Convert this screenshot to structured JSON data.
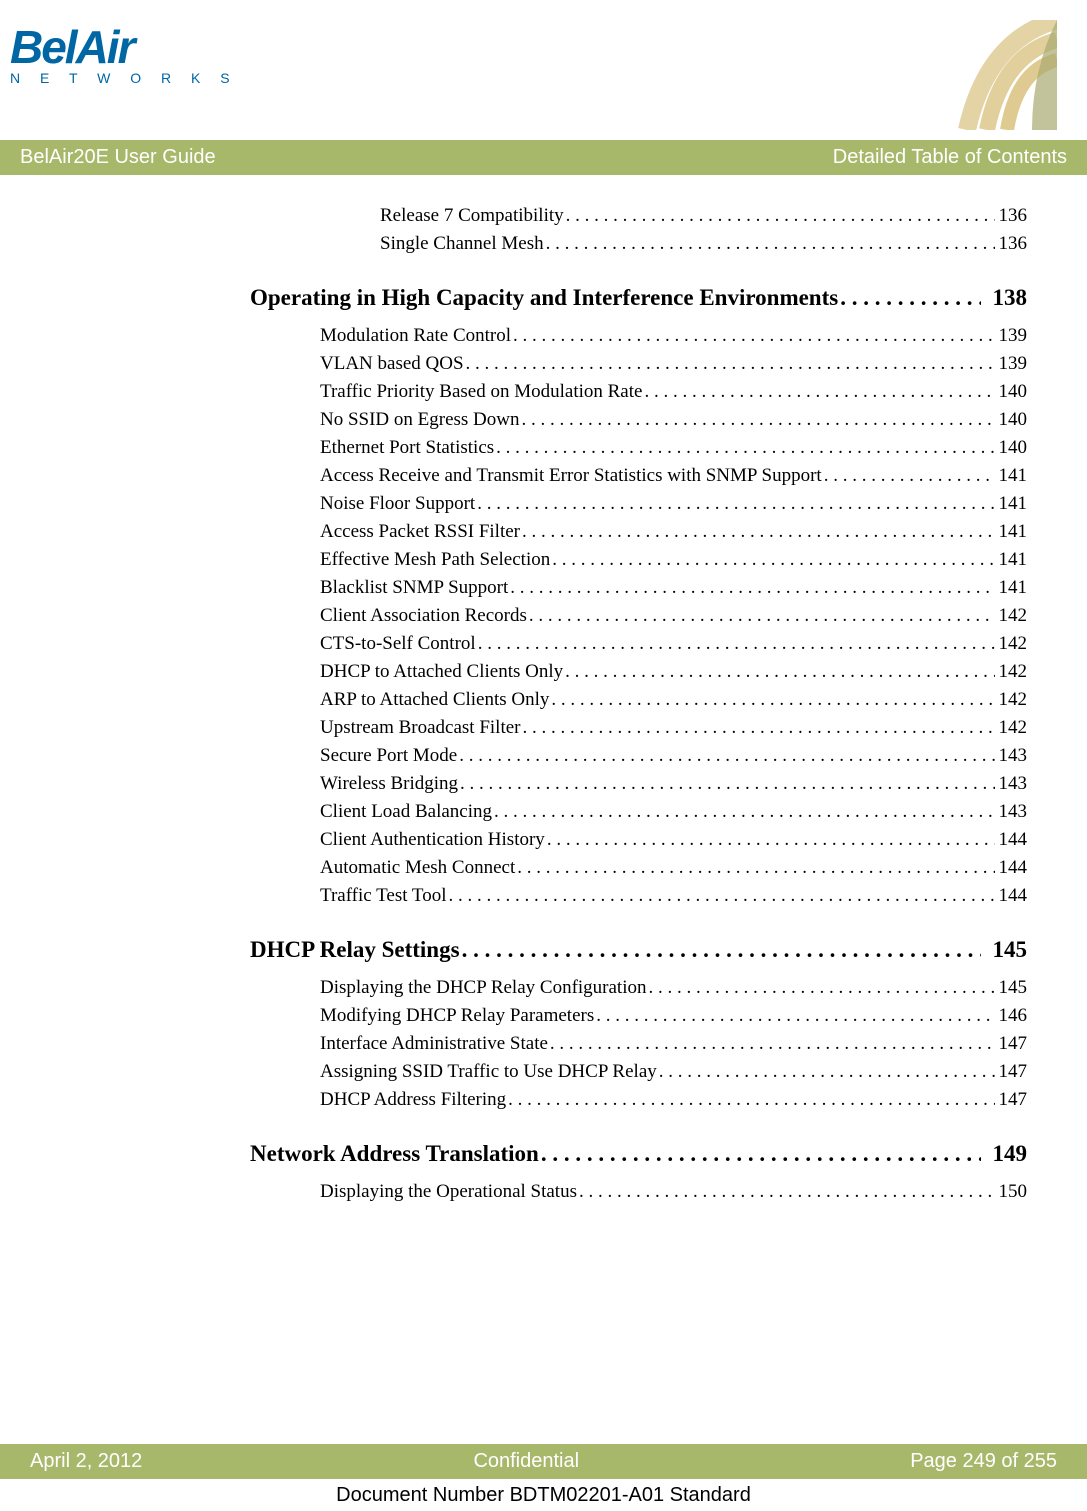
{
  "logo": {
    "main": "BelAir",
    "sub": "N E T W O R K S"
  },
  "titleBar": {
    "left": "BelAir20E User Guide",
    "right": "Detailed Table of Contents"
  },
  "colors": {
    "bar": "#a8b86a",
    "logo": "#0066a4",
    "corner": "#c9a84a"
  },
  "preItems": [
    {
      "label": "Release 7 Compatibility",
      "page": "136"
    },
    {
      "label": "Single Channel Mesh",
      "page": "136"
    }
  ],
  "sections": [
    {
      "title": "Operating in High Capacity and Interference Environments",
      "page": "138",
      "items": [
        {
          "label": "Modulation Rate Control",
          "page": "139"
        },
        {
          "label": "VLAN based QOS",
          "page": "139"
        },
        {
          "label": "Traffic Priority Based on Modulation Rate",
          "page": "140"
        },
        {
          "label": "No SSID on Egress Down",
          "page": "140"
        },
        {
          "label": "Ethernet Port Statistics",
          "page": "140"
        },
        {
          "label": "Access Receive and Transmit Error Statistics with SNMP Support",
          "page": "141"
        },
        {
          "label": "Noise Floor Support",
          "page": "141"
        },
        {
          "label": "Access Packet RSSI Filter",
          "page": "141"
        },
        {
          "label": "Effective Mesh Path Selection",
          "page": "141"
        },
        {
          "label": "Blacklist SNMP Support",
          "page": "141"
        },
        {
          "label": "Client Association Records",
          "page": "142"
        },
        {
          "label": "CTS-to-Self Control",
          "page": "142"
        },
        {
          "label": "DHCP to Attached Clients Only",
          "page": "142"
        },
        {
          "label": "ARP to Attached Clients Only",
          "page": "142"
        },
        {
          "label": "Upstream Broadcast Filter",
          "page": "142"
        },
        {
          "label": "Secure Port Mode",
          "page": "143"
        },
        {
          "label": "Wireless Bridging",
          "page": "143"
        },
        {
          "label": "Client Load Balancing",
          "page": "143"
        },
        {
          "label": "Client Authentication History",
          "page": "144"
        },
        {
          "label": "Automatic Mesh Connect",
          "page": "144"
        },
        {
          "label": "Traffic Test Tool",
          "page": "144"
        }
      ]
    },
    {
      "title": "DHCP Relay Settings",
      "page": "145",
      "items": [
        {
          "label": "Displaying the DHCP Relay Configuration",
          "page": "145"
        },
        {
          "label": "Modifying DHCP Relay Parameters",
          "page": "146"
        },
        {
          "label": "Interface Administrative State",
          "page": "147"
        },
        {
          "label": "Assigning SSID Traffic to Use DHCP Relay",
          "page": "147"
        },
        {
          "label": "DHCP Address Filtering",
          "page": "147"
        }
      ]
    },
    {
      "title": "Network Address Translation",
      "page": "149",
      "items": [
        {
          "label": "Displaying the Operational Status",
          "page": "150"
        }
      ]
    }
  ],
  "footer": {
    "left": "April 2, 2012",
    "center": "Confidential",
    "right": "Page 249 of 255"
  },
  "docNumber": "Document Number BDTM02201-A01 Standard"
}
